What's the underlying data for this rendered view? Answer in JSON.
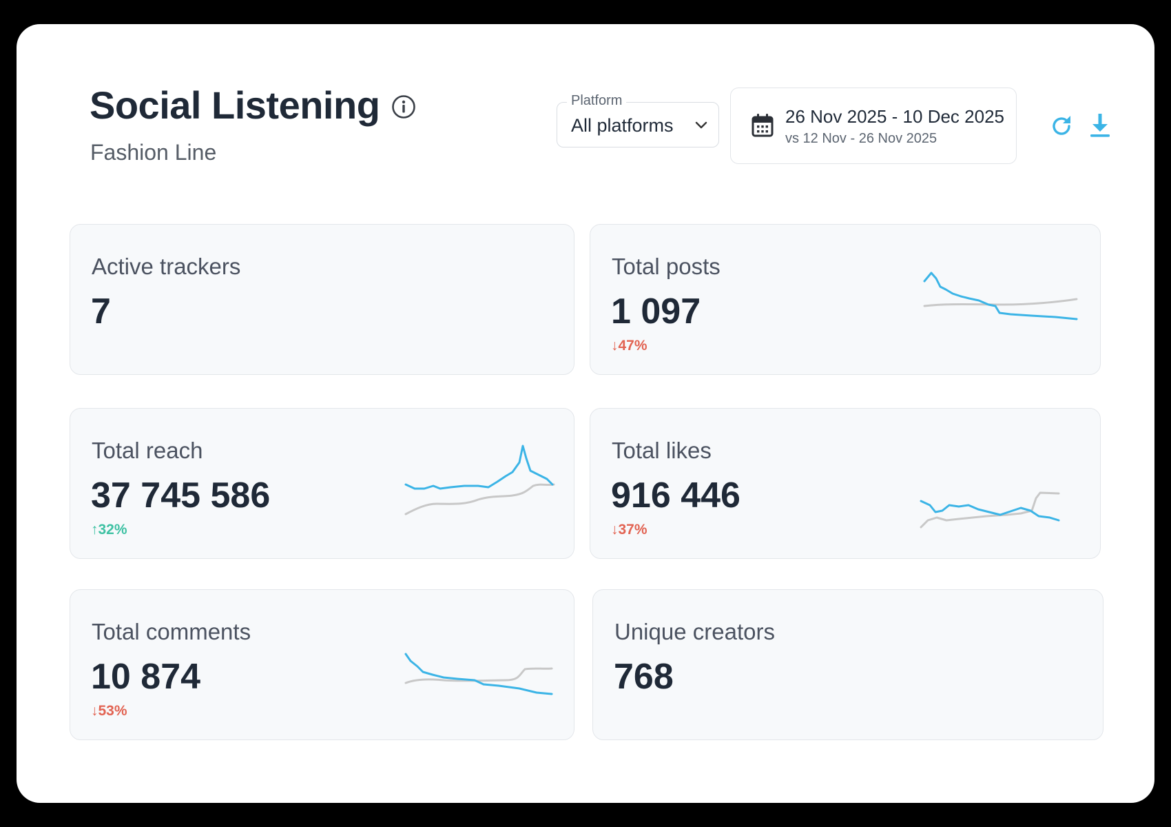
{
  "header": {
    "title": "Social Listening",
    "subtitle": "Fashion Line",
    "platform_label": "Platform",
    "platform_value": "All platforms",
    "date_range": "26 Nov 2025 - 10 Dec 2025",
    "date_compare": "vs 12 Nov - 26 Nov 2025"
  },
  "colors": {
    "accent": "#3bb4e6",
    "compare": "#c8c8c8",
    "down": "#e26352",
    "up": "#3ec1a3"
  },
  "metrics": [
    {
      "label": "Active trackers",
      "value": "7",
      "delta": ""
    },
    {
      "label": "Total posts",
      "value": "1 097",
      "delta": "↓47%"
    },
    {
      "label": "Total reach",
      "value": "37 745 586",
      "delta": "↑32%"
    },
    {
      "label": "Total likes",
      "value": "916 446",
      "delta": "↓37%"
    },
    {
      "label": "Total comments",
      "value": "10 874",
      "delta": "↓53%"
    },
    {
      "label": "Unique creators",
      "value": "768",
      "delta": ""
    }
  ],
  "icons": {
    "info": "info-icon",
    "chevron": "chevron-down-icon",
    "calendar": "calendar-icon",
    "refresh": "refresh-icon",
    "download": "download-icon"
  }
}
